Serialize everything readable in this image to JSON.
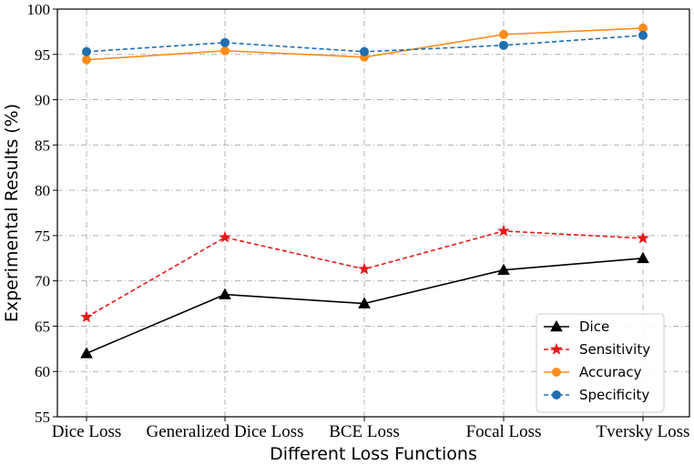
{
  "chart_data": {
    "type": "line",
    "title": "",
    "xlabel": "Different Loss Functions",
    "ylabel": "Experimental Results (%)",
    "categories": [
      "Dice Loss",
      "Generalized Dice Loss",
      "BCE Loss",
      "Focal Loss",
      "Tversky Loss"
    ],
    "ylim": [
      55,
      100
    ],
    "yticks": [
      55,
      60,
      65,
      70,
      75,
      80,
      85,
      90,
      95,
      100
    ],
    "grid": true,
    "legend_position": "lower-right",
    "series": [
      {
        "name": "Dice",
        "color": "#000000",
        "marker": "triangle",
        "dash": "solid",
        "values": [
          62.0,
          68.5,
          67.5,
          71.2,
          72.5
        ]
      },
      {
        "name": "Sensitivity",
        "color": "#e41a1c",
        "marker": "star",
        "dash": "dashed",
        "values": [
          66.0,
          74.8,
          71.3,
          75.5,
          74.7
        ]
      },
      {
        "name": "Accuracy",
        "color": "#ff8c1a",
        "marker": "circle",
        "dash": "solid",
        "values": [
          94.4,
          95.4,
          94.7,
          97.2,
          97.9
        ]
      },
      {
        "name": "Specificity",
        "color": "#1f6eb0",
        "marker": "circle",
        "dash": "dashed",
        "values": [
          95.3,
          96.3,
          95.3,
          96.0,
          97.1
        ]
      }
    ]
  }
}
